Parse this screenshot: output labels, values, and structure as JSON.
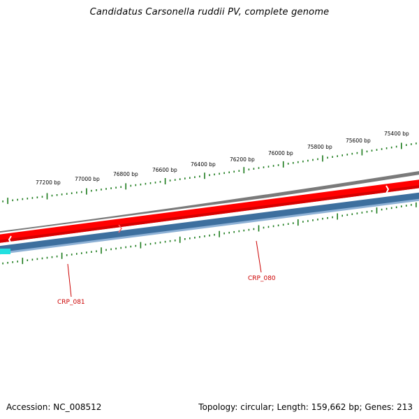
{
  "title": "Candidatus Carsonella ruddii PV, complete genome",
  "footer": {
    "accession": "Accession: NC_008512",
    "summary": "Topology: circular; Length: 159,662 bp; Genes: 213"
  },
  "scale": {
    "color": "#1a7a1a",
    "labels": [
      "77200 bp",
      "77000 bp",
      "76800 bp",
      "76600 bp",
      "76400 bp",
      "76200 bp",
      "76000 bp",
      "75800 bp",
      "75600 bp",
      "75400 bp"
    ]
  },
  "tracks": {
    "backbone_color": "#7a7a7a",
    "forward_color": "#ff0000",
    "reverse_color": "#3d6f9e",
    "highlight_color": "#22e0e0"
  },
  "genes": [
    {
      "name": "CRP_080",
      "color": "#cc0000"
    },
    {
      "name": "CRP_081",
      "color": "#cc0000"
    }
  ]
}
